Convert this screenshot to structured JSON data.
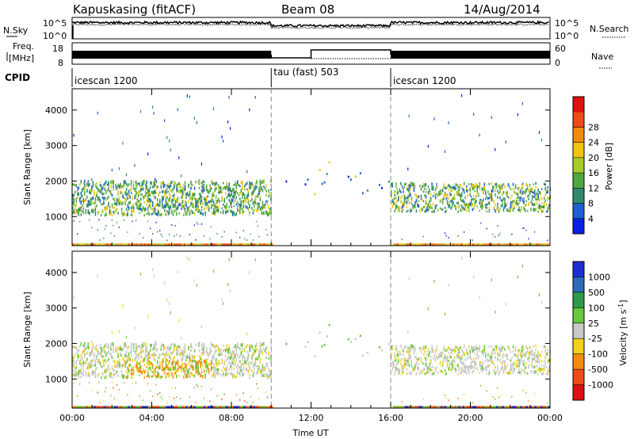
{
  "header": {
    "station": "Kapuskasing (fitACF)",
    "beam": "Beam 08",
    "date": "14/Aug/2014"
  },
  "labels": {
    "nsky": "N.Sky",
    "freq_line1": "Freq.",
    "freq_line2": "[MHz]",
    "cpid": "CPID",
    "nsearch": "N.Search",
    "nave": "Nave"
  },
  "chart_data": [
    {
      "type": "line",
      "name_panel": "noise",
      "ylabel": "N.Sky",
      "yticks_left": [
        "10^5",
        "10^0"
      ],
      "yticks_right": [
        "10^5",
        "10^0"
      ],
      "ylabel_right": "N.Search",
      "xlim_hours": [
        0,
        24
      ]
    },
    {
      "type": "line",
      "name_panel": "frequency",
      "ylabel": "Freq. [MHz]",
      "yticks_left": [
        "18",
        "8"
      ],
      "yticks_right": [
        "60",
        "0"
      ],
      "ylabel_right": "Nave",
      "segments": [
        {
          "start_hour": 0,
          "end_hour": 10
        },
        {
          "start_hour": 10,
          "end_hour": 12
        },
        {
          "start_hour": 12,
          "end_hour": 16
        },
        {
          "start_hour": 16,
          "end_hour": 24
        }
      ]
    },
    {
      "type": "table",
      "name_panel": "cpid",
      "ylabel": "CPID",
      "segments": [
        {
          "label": "icescan 1200",
          "start_hour": 0,
          "end_hour": 10
        },
        {
          "label": "tau (fast) 503",
          "start_hour": 10,
          "end_hour": 16
        },
        {
          "label": "icescan 1200",
          "start_hour": 16,
          "end_hour": 24
        }
      ]
    },
    {
      "type": "heatmap",
      "name_panel": "power",
      "ylabel": "Slant Range [km]",
      "yticks": [
        1000,
        2000,
        3000,
        4000
      ],
      "ylim": [
        180,
        4600
      ],
      "colorbar_label": "Power [dB]",
      "colorbar_ticks": [
        4,
        8,
        12,
        16,
        20,
        24,
        28
      ],
      "colorbar_colors": [
        "#0a1fe6",
        "#1f5ed4",
        "#2f8a6e",
        "#4fa83f",
        "#a5cc2a",
        "#f2c40f",
        "#f28a10",
        "#ee4a14",
        "#dd1010"
      ]
    },
    {
      "type": "heatmap",
      "name_panel": "velocity",
      "ylabel": "Slant Range [km]",
      "yticks": [
        1000,
        2000,
        3000,
        4000
      ],
      "ylim": [
        180,
        4600
      ],
      "colorbar_label": "Velocity [m s",
      "colorbar_label_sup": "-1",
      "colorbar_label_end": "]",
      "colorbar_ticks": [
        "1000",
        "500",
        "100",
        "25",
        "-25",
        "-100",
        "-500",
        "-1000"
      ],
      "colorbar_colors": [
        "#1f2ed0",
        "#2e6ab8",
        "#2f9a4a",
        "#66c83a",
        "#c8c8c8",
        "#f2d21c",
        "#f28a10",
        "#ee4a14",
        "#dd1010"
      ],
      "xlabel": "Time UT",
      "xticks": [
        "00:00",
        "04:00",
        "08:00",
        "12:00",
        "16:00",
        "20:00",
        "00:00"
      ],
      "xtick_hours": [
        0,
        4,
        8,
        12,
        16,
        20,
        24
      ]
    }
  ]
}
